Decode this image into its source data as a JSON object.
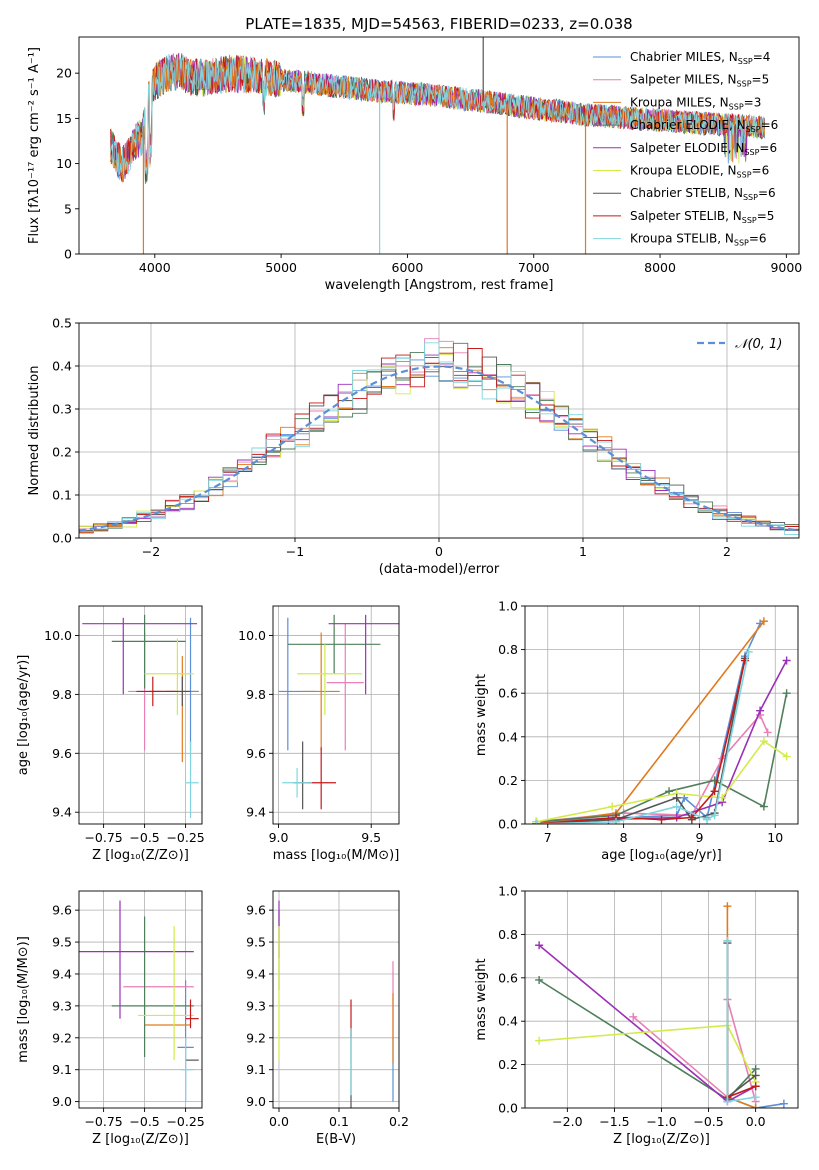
{
  "figure_title": "PLATE=1835, MJD=54563, FIBERID=0233, z=0.038",
  "colors": {
    "chabrier_miles": "#5b8fd6",
    "salpeter_miles": "#e87fb5",
    "kroupa_miles": "#e07a1f",
    "chabrier_elodie": "#4f7f5a",
    "salpeter_elodie": "#9b30b8",
    "kroupa_elodie": "#d4ea4a",
    "chabrier_stelib": "#555555",
    "salpeter_stelib": "#c41a1a",
    "kroupa_stelib": "#7fd6e0",
    "gaussian": "#5b8fd6",
    "grid": "#b0b0b0"
  },
  "chart_data": [
    {
      "id": "spectrum",
      "type": "line",
      "title": "PLATE=1835, MJD=54563, FIBERID=0233, z=0.038",
      "xlabel": "wavelength [Angstrom, rest frame]",
      "ylabel": "Flux [fλ10⁻¹⁷ erg cm⁻² s⁻¹ A⁻¹]",
      "xlim": [
        3400,
        9100
      ],
      "ylim": [
        0,
        24
      ],
      "xticks": [
        4000,
        5000,
        6000,
        7000,
        8000,
        9000
      ],
      "yticks": [
        0,
        5,
        10,
        15,
        20
      ],
      "grid": false,
      "legend_position": "top-right",
      "legend": [
        "Chabrier MILES, N_SSP=4",
        "Salpeter MILES, N_SSP=5",
        "Kroupa MILES, N_SSP=3",
        "Chabrier ELODIE, N_SSP=6",
        "Salpeter ELODIE, N_SSP=6",
        "Kroupa ELODIE, N_SSP=6",
        "Chabrier STELIB, N_SSP=6",
        "Salpeter STELIB, N_SSP=5",
        "Kroupa STELIB, N_SSP=6"
      ],
      "continuum": {
        "x": [
          3650,
          3700,
          3750,
          3800,
          3850,
          3900,
          3950,
          4000,
          4100,
          4200,
          4300,
          4400,
          4600,
          4800,
          5000,
          5200,
          5400,
          5600,
          5800,
          6000,
          6200,
          6400,
          6600,
          6800,
          7000,
          7200,
          7400,
          7600,
          7800,
          8000,
          8200,
          8400,
          8600,
          8800
        ],
        "y": [
          12,
          10.5,
          10,
          11,
          12.5,
          13,
          17,
          19,
          20,
          20.2,
          19.5,
          19.5,
          20,
          19.8,
          19.2,
          19,
          18.6,
          18.3,
          18,
          17.8,
          17.6,
          17.2,
          16.9,
          16.5,
          16.1,
          15.8,
          15.4,
          15.2,
          15,
          14.8,
          14.6,
          14.4,
          14.2,
          14
        ]
      },
      "spikes": [
        {
          "series": "Kroupa MILES",
          "x": 3910,
          "y_to": 0
        },
        {
          "series": "Kroupa STELIB",
          "x": 5780,
          "y_to": 0
        },
        {
          "series": "Kroupa MILES",
          "x": 6790,
          "y_to": 0
        },
        {
          "series": "Chabrier STELIB",
          "x": 6600,
          "y_to": 24
        },
        {
          "series": "Kroupa MILES",
          "x": 7410,
          "y_to": 0
        }
      ]
    },
    {
      "id": "residuals",
      "type": "histogram",
      "xlabel": "(data-model)/error",
      "ylabel": "Normed distribution",
      "xlim": [
        -2.5,
        2.5
      ],
      "ylim": [
        0,
        0.5
      ],
      "xticks": [
        -2,
        -1,
        0,
        1,
        2
      ],
      "yticks": [
        0.0,
        0.1,
        0.2,
        0.3,
        0.4,
        0.5
      ],
      "grid": true,
      "legend_position": "top-right",
      "legend": [
        "𝒩(0, 1)"
      ],
      "gaussian": {
        "mu": 0,
        "sigma": 1
      },
      "bin_width": 0.1
    },
    {
      "id": "age_vs_Z",
      "type": "errorbar",
      "xlabel": "Z [log₁₀(Z/Z⊙)]",
      "ylabel": "age  [log₁₀(age/yr)]",
      "xlim": [
        -0.9,
        -0.15
      ],
      "ylim": [
        9.36,
        10.1
      ],
      "xticks": [
        -0.75,
        -0.5,
        -0.25
      ],
      "yticks": [
        9.4,
        9.6,
        9.8,
        10.0
      ],
      "grid": true,
      "points": [
        {
          "series": "Chabrier MILES",
          "x": -0.22,
          "y": 9.81,
          "xerr": [
            0.05,
            0.05
          ],
          "yerr": [
            0.2,
            0.25
          ]
        },
        {
          "series": "Salpeter MILES",
          "x": -0.5,
          "y": 9.81,
          "xerr": [
            0.1,
            0.1
          ],
          "yerr": [
            0.2,
            0.2
          ]
        },
        {
          "series": "Kroupa MILES",
          "x": -0.27,
          "y": 9.81,
          "xerr": [
            0.1,
            0.1
          ],
          "yerr": [
            0.24,
            0.12
          ]
        },
        {
          "series": "Chabrier ELODIE",
          "x": -0.5,
          "y": 9.98,
          "xerr": [
            0.2,
            0.25
          ],
          "yerr": [
            0.16,
            0.09
          ]
        },
        {
          "series": "Salpeter ELODIE",
          "x": -0.63,
          "y": 10.04,
          "xerr": [
            0.25,
            0.45
          ],
          "yerr": [
            0.24,
            0.02
          ]
        },
        {
          "series": "Kroupa ELODIE",
          "x": -0.3,
          "y": 9.87,
          "xerr": [
            0.2,
            0.1
          ],
          "yerr": [
            0.14,
            0.12
          ]
        },
        {
          "series": "Chabrier STELIB",
          "x": -0.27,
          "y": 9.81,
          "xerr": [
            0.2,
            0.05
          ],
          "yerr": [
            0.05,
            0.05
          ]
        },
        {
          "series": "Salpeter STELIB",
          "x": -0.45,
          "y": 9.81,
          "xerr": [
            0.1,
            0.15
          ],
          "yerr": [
            0.05,
            0.05
          ]
        },
        {
          "series": "Kroupa STELIB",
          "x": -0.22,
          "y": 9.5,
          "xerr": [
            0.03,
            0.05
          ],
          "yerr": [
            0.12,
            0.14
          ]
        }
      ]
    },
    {
      "id": "age_vs_mass",
      "type": "errorbar",
      "xlabel": "mass [log₁₀(M/M⊙)]",
      "ylabel": "",
      "xlim": [
        8.97,
        9.65
      ],
      "ylim": [
        9.36,
        10.1
      ],
      "xticks": [
        9.0,
        9.5
      ],
      "yticks": [
        9.4,
        9.6,
        9.8,
        10.0
      ],
      "grid": true,
      "points": [
        {
          "series": "Chabrier MILES",
          "x": 9.05,
          "y": 9.81,
          "xerr": [
            0.05,
            0.15
          ],
          "yerr": [
            0.2,
            0.25
          ]
        },
        {
          "series": "Salpeter MILES",
          "x": 9.36,
          "y": 9.84,
          "xerr": [
            0.1,
            0.1
          ],
          "yerr": [
            0.23,
            0.2
          ]
        },
        {
          "series": "Kroupa MILES",
          "x": 9.23,
          "y": 9.81,
          "xerr": [
            0.1,
            0.1
          ],
          "yerr": [
            0.2,
            0.2
          ]
        },
        {
          "series": "Chabrier ELODIE",
          "x": 9.3,
          "y": 9.97,
          "xerr": [
            0.25,
            0.25
          ],
          "yerr": [
            0.1,
            0.1
          ]
        },
        {
          "series": "Salpeter ELODIE",
          "x": 9.47,
          "y": 10.04,
          "xerr": [
            0.2,
            0.18
          ],
          "yerr": [
            0.24,
            0.03
          ]
        },
        {
          "series": "Kroupa ELODIE",
          "x": 9.25,
          "y": 9.87,
          "xerr": [
            0.15,
            0.2
          ],
          "yerr": [
            0.14,
            0.1
          ]
        },
        {
          "series": "Chabrier STELIB",
          "x": 9.13,
          "y": 9.5,
          "xerr": [
            0.05,
            0.05
          ],
          "yerr": [
            0.09,
            0.14
          ]
        },
        {
          "series": "Salpeter STELIB",
          "x": 9.23,
          "y": 9.5,
          "xerr": [
            0.08,
            0.08
          ],
          "yerr": [
            0.09,
            0.12
          ]
        },
        {
          "series": "Kroupa STELIB",
          "x": 9.1,
          "y": 9.5,
          "xerr": [
            0.08,
            0.08
          ],
          "yerr": [
            0.05,
            0.05
          ]
        }
      ]
    },
    {
      "id": "weight_vs_age",
      "type": "line",
      "xlabel": "age  [log₁₀(age/yr)]",
      "ylabel": "mass weight",
      "xlim": [
        6.7,
        10.3
      ],
      "ylim": [
        0,
        1
      ],
      "xticks": [
        7,
        8,
        9,
        10
      ],
      "yticks": [
        0.0,
        0.2,
        0.4,
        0.6,
        0.8,
        1.0
      ],
      "grid": true,
      "series": [
        {
          "name": "Chabrier MILES",
          "x": [
            6.85,
            8.7,
            8.8,
            9.1,
            9.6,
            9.8
          ],
          "y": [
            0.01,
            0.04,
            0.12,
            0.03,
            0.77,
            0.92
          ]
        },
        {
          "name": "Salpeter MILES",
          "x": [
            6.85,
            8.0,
            8.9,
            9.3,
            9.8,
            9.9
          ],
          "y": [
            0.01,
            0.05,
            0.04,
            0.3,
            0.5,
            0.42
          ]
        },
        {
          "name": "Kroupa MILES",
          "x": [
            6.85,
            7.9,
            9.85
          ],
          "y": [
            0.0,
            0.05,
            0.93
          ]
        },
        {
          "name": "Chabrier ELODIE",
          "x": [
            6.85,
            7.9,
            8.6,
            9.2,
            9.85,
            10.15
          ],
          "y": [
            0.01,
            0.04,
            0.15,
            0.2,
            0.08,
            0.6
          ]
        },
        {
          "name": "Salpeter ELODIE",
          "x": [
            6.85,
            7.8,
            8.7,
            9.3,
            9.8,
            10.15
          ],
          "y": [
            0.0,
            0.02,
            0.03,
            0.1,
            0.52,
            0.75
          ]
        },
        {
          "name": "Kroupa ELODIE",
          "x": [
            6.85,
            7.85,
            8.7,
            9.3,
            9.85,
            10.15
          ],
          "y": [
            0.01,
            0.08,
            0.14,
            0.12,
            0.38,
            0.31
          ]
        },
        {
          "name": "Chabrier STELIB",
          "x": [
            6.85,
            7.9,
            8.7,
            8.9,
            9.2,
            9.6
          ],
          "y": [
            0.0,
            0.02,
            0.12,
            0.02,
            0.05,
            0.76
          ]
        },
        {
          "name": "Salpeter STELIB",
          "x": [
            6.85,
            7.9,
            8.5,
            8.9,
            9.2,
            9.6
          ],
          "y": [
            0.0,
            0.03,
            0.02,
            0.03,
            0.15,
            0.75
          ]
        },
        {
          "name": "Kroupa STELIB",
          "x": [
            6.85,
            7.9,
            8.7,
            9.1,
            9.2,
            9.65
          ],
          "y": [
            0.0,
            0.01,
            0.08,
            0.02,
            0.04,
            0.79
          ]
        }
      ]
    },
    {
      "id": "mass_vs_Z",
      "type": "errorbar",
      "xlabel": "Z [log₁₀(Z/Z⊙)]",
      "ylabel": "mass [log₁₀(M/M⊙)]",
      "xlim": [
        -0.9,
        -0.15
      ],
      "ylim": [
        8.98,
        9.66
      ],
      "xticks": [
        -0.75,
        -0.5,
        -0.25
      ],
      "yticks": [
        9.0,
        9.1,
        9.2,
        9.3,
        9.4,
        9.5,
        9.6
      ],
      "grid": true,
      "points": [
        {
          "series": "Chabrier MILES",
          "x": -0.25,
          "y": 9.17,
          "xerr": [
            0.05,
            0.05
          ],
          "yerr": [
            0.17,
            0.21
          ]
        },
        {
          "series": "Salpeter MILES",
          "x": -0.45,
          "y": 9.36,
          "xerr": [
            0.18,
            0.25
          ],
          "yerr": [
            0.0,
            0.0
          ]
        },
        {
          "series": "Kroupa MILES",
          "x": -0.4,
          "y": 9.24,
          "xerr": [
            0.1,
            0.18
          ],
          "yerr": [
            0.0,
            0.0
          ]
        },
        {
          "series": "Chabrier ELODIE",
          "x": -0.5,
          "y": 9.3,
          "xerr": [
            0.2,
            0.3
          ],
          "yerr": [
            0.16,
            0.28
          ]
        },
        {
          "series": "Salpeter ELODIE",
          "x": -0.65,
          "y": 9.47,
          "xerr": [
            0.25,
            0.45
          ],
          "yerr": [
            0.21,
            0.16
          ]
        },
        {
          "series": "Kroupa ELODIE",
          "x": -0.32,
          "y": 9.27,
          "xerr": [
            0.22,
            0.12
          ],
          "yerr": [
            0.14,
            0.28
          ]
        },
        {
          "series": "Chabrier STELIB",
          "x": -0.22,
          "y": 9.13,
          "xerr": [
            0.03,
            0.05
          ],
          "yerr": [
            0.0,
            0.0
          ]
        },
        {
          "series": "Salpeter STELIB",
          "x": -0.22,
          "y": 9.26,
          "xerr": [
            0.03,
            0.05
          ],
          "yerr": [
            0.03,
            0.06
          ]
        },
        {
          "series": "Kroupa STELIB",
          "x": -0.25,
          "y": 9.1,
          "xerr": [
            0.03,
            0.05
          ],
          "yerr": [
            0.1,
            0.1
          ]
        }
      ]
    },
    {
      "id": "mass_vs_EBV",
      "type": "errorbar",
      "xlabel": "E(B-V)",
      "ylabel": "",
      "xlim": [
        -0.01,
        0.2
      ],
      "ylim": [
        8.98,
        9.66
      ],
      "xticks": [
        0.0,
        0.1,
        0.2
      ],
      "yticks": [
        9.0,
        9.1,
        9.2,
        9.3,
        9.4,
        9.5,
        9.6
      ],
      "grid": true,
      "points": [
        {
          "series": "Chabrier MILES",
          "x": 0.19,
          "y": 9.1,
          "xerr": [
            0,
            0
          ],
          "yerr": [
            0.1,
            0.1
          ]
        },
        {
          "series": "Salpeter MILES",
          "x": 0.19,
          "y": 9.3,
          "xerr": [
            0,
            0
          ],
          "yerr": [
            0.1,
            0.14
          ]
        },
        {
          "series": "Kroupa MILES",
          "x": 0.19,
          "y": 9.22,
          "xerr": [
            0,
            0
          ],
          "yerr": [
            0.1,
            0.12
          ]
        },
        {
          "series": "Chabrier ELODIE",
          "x": 0.0,
          "y": 9.45,
          "xerr": [
            0,
            0
          ],
          "yerr": [
            0.1,
            0.15
          ]
        },
        {
          "series": "Salpeter ELODIE",
          "x": 0.0,
          "y": 9.55,
          "xerr": [
            0,
            0
          ],
          "yerr": [
            0.1,
            0.08
          ]
        },
        {
          "series": "Kroupa ELODIE",
          "x": 0.0,
          "y": 9.35,
          "xerr": [
            0,
            0
          ],
          "yerr": [
            0.22,
            0.2
          ]
        },
        {
          "series": "Chabrier STELIB",
          "x": 0.12,
          "y": 9.13,
          "xerr": [
            0,
            0
          ],
          "yerr": [
            0.2,
            0.1
          ]
        },
        {
          "series": "Salpeter STELIB",
          "x": 0.12,
          "y": 9.25,
          "xerr": [
            0,
            0
          ],
          "yerr": [
            0.05,
            0.07
          ]
        },
        {
          "series": "Kroupa STELIB",
          "x": 0.12,
          "y": 9.1,
          "xerr": [
            0,
            0
          ],
          "yerr": [
            0.08,
            0.13
          ]
        }
      ]
    },
    {
      "id": "weight_vs_Z",
      "type": "line",
      "xlabel": "Z [log₁₀(Z/Z⊙)]",
      "ylabel": "mass weight",
      "xlim": [
        -2.45,
        0.45
      ],
      "ylim": [
        0,
        1
      ],
      "xticks": [
        -2.0,
        -1.5,
        -1.0,
        -0.5,
        0.0
      ],
      "yticks": [
        0.0,
        0.2,
        0.4,
        0.6,
        0.8,
        1.0
      ],
      "grid": true,
      "series": [
        {
          "name": "Chabrier MILES",
          "x": [
            -0.3,
            -0.3,
            0.0,
            0.3
          ],
          "y": [
            0.77,
            0.05,
            0.0,
            0.02
          ]
        },
        {
          "name": "Salpeter MILES",
          "x": [
            -1.3,
            -0.3,
            -0.3,
            0.0
          ],
          "y": [
            0.42,
            0.05,
            0.5,
            0.03
          ]
        },
        {
          "name": "Kroupa MILES",
          "x": [
            -0.3,
            -0.3,
            0.0
          ],
          "y": [
            0.93,
            0.05,
            0.0
          ]
        },
        {
          "name": "Chabrier ELODIE",
          "x": [
            -2.3,
            -0.3,
            0.0
          ],
          "y": [
            0.59,
            0.04,
            0.18
          ]
        },
        {
          "name": "Salpeter ELODIE",
          "x": [
            -2.3,
            -0.3,
            0.0
          ],
          "y": [
            0.75,
            0.03,
            0.1
          ]
        },
        {
          "name": "Kroupa ELODIE",
          "x": [
            -2.3,
            -0.3,
            0.0
          ],
          "y": [
            0.31,
            0.38,
            0.12
          ]
        },
        {
          "name": "Chabrier STELIB",
          "x": [
            -0.3,
            -0.3,
            0.0
          ],
          "y": [
            0.76,
            0.05,
            0.15
          ]
        },
        {
          "name": "Salpeter STELIB",
          "x": [
            -0.3,
            0.0
          ],
          "y": [
            0.05,
            0.1
          ]
        },
        {
          "name": "Kroupa STELIB",
          "x": [
            -0.3,
            -0.3,
            0.0
          ],
          "y": [
            0.77,
            0.03,
            0.05
          ]
        }
      ]
    }
  ]
}
